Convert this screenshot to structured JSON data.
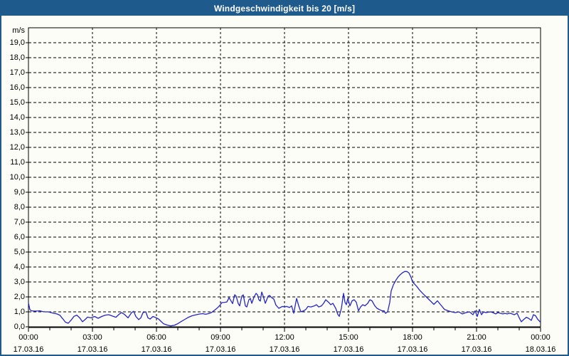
{
  "window": {
    "title": "Windgeschwindigkeit bis 20 [m/s]"
  },
  "colors": {
    "titlebar_bg": "#1e5a8c",
    "title_text": "#ffffff",
    "window_border": "#1e5a8c",
    "background": "#fcfdf6",
    "grid": "#000000",
    "line": "#2525c8"
  },
  "chart_data": {
    "type": "line",
    "title": "Windgeschwindigkeit bis 20 [m/s]",
    "ylabel": "m/s",
    "xlabel": "",
    "ylim": [
      0,
      20
    ],
    "grid": "dashed",
    "legend_position": "none",
    "ytick_values": [
      0,
      1,
      2,
      3,
      4,
      5,
      6,
      7,
      8,
      9,
      10,
      11,
      12,
      13,
      14,
      15,
      16,
      17,
      18,
      19
    ],
    "ytick_labels": [
      "0,0",
      "1,0",
      "2,0",
      "3,0",
      "4,0",
      "5,0",
      "6,0",
      "7,0",
      "8,0",
      "9,0",
      "10,0",
      "11,0",
      "12,0",
      "13,0",
      "14,0",
      "15,0",
      "16,0",
      "17,0",
      "18,0",
      "19,0"
    ],
    "xlim_minutes": [
      0,
      1440
    ],
    "x_minor_tick_minutes": 60,
    "xticks": [
      {
        "t": 0,
        "time": "00:00",
        "date": "17.03.16"
      },
      {
        "t": 180,
        "time": "03:00",
        "date": "17.03.16"
      },
      {
        "t": 360,
        "time": "06:00",
        "date": "17.03.16"
      },
      {
        "t": 540,
        "time": "09:00",
        "date": "17.03.16"
      },
      {
        "t": 720,
        "time": "12:00",
        "date": "17.03.16"
      },
      {
        "t": 900,
        "time": "15:00",
        "date": "17.03.16"
      },
      {
        "t": 1080,
        "time": "18:00",
        "date": "17.03.16"
      },
      {
        "t": 1260,
        "time": "21:00",
        "date": "17.03.16"
      },
      {
        "t": 1440,
        "time": "00:00",
        "date": "18.03.16"
      }
    ],
    "series": [
      {
        "name": "Windgeschwindigkeit",
        "points": [
          [
            0,
            1.6
          ],
          [
            4,
            1.15
          ],
          [
            8,
            1.07
          ],
          [
            16,
            1.05
          ],
          [
            24,
            1.05
          ],
          [
            32,
            1.07
          ],
          [
            40,
            1.02
          ],
          [
            48,
            1.0
          ],
          [
            56,
            1.0
          ],
          [
            64,
            0.95
          ],
          [
            72,
            0.9
          ],
          [
            80,
            0.86
          ],
          [
            88,
            0.78
          ],
          [
            96,
            0.55
          ],
          [
            104,
            0.31
          ],
          [
            112,
            0.24
          ],
          [
            120,
            0.45
          ],
          [
            128,
            0.7
          ],
          [
            136,
            0.78
          ],
          [
            144,
            0.6
          ],
          [
            152,
            0.34
          ],
          [
            160,
            0.5
          ],
          [
            166,
            0.65
          ],
          [
            176,
            0.6
          ],
          [
            186,
            0.69
          ],
          [
            196,
            0.57
          ],
          [
            206,
            0.69
          ],
          [
            216,
            0.78
          ],
          [
            226,
            0.81
          ],
          [
            236,
            0.72
          ],
          [
            246,
            0.64
          ],
          [
            256,
            0.86
          ],
          [
            262,
            0.95
          ],
          [
            270,
            0.83
          ],
          [
            280,
            0.6
          ],
          [
            290,
            0.95
          ],
          [
            296,
            1.04
          ],
          [
            302,
            0.69
          ],
          [
            310,
            0.48
          ],
          [
            316,
            0.6
          ],
          [
            322,
            0.95
          ],
          [
            330,
            1.0
          ],
          [
            336,
            0.6
          ],
          [
            342,
            0.52
          ],
          [
            350,
            0.69
          ],
          [
            356,
            0.64
          ],
          [
            366,
            0.52
          ],
          [
            372,
            0.38
          ],
          [
            380,
            0.2
          ],
          [
            390,
            0.12
          ],
          [
            400,
            0.06
          ],
          [
            410,
            0.1
          ],
          [
            420,
            0.21
          ],
          [
            430,
            0.36
          ],
          [
            440,
            0.5
          ],
          [
            450,
            0.64
          ],
          [
            460,
            0.74
          ],
          [
            470,
            0.8
          ],
          [
            480,
            0.85
          ],
          [
            490,
            0.88
          ],
          [
            498,
            0.84
          ],
          [
            506,
            0.88
          ],
          [
            514,
            0.95
          ],
          [
            520,
            1.05
          ],
          [
            526,
            1.16
          ],
          [
            532,
            1.28
          ],
          [
            538,
            1.43
          ],
          [
            544,
            1.62
          ],
          [
            552,
            1.64
          ],
          [
            558,
            1.66
          ],
          [
            564,
            1.95
          ],
          [
            570,
            1.72
          ],
          [
            574,
            1.55
          ],
          [
            580,
            2.15
          ],
          [
            584,
            2.05
          ],
          [
            590,
            1.55
          ],
          [
            594,
            1.4
          ],
          [
            600,
            2.05
          ],
          [
            604,
            2.14
          ],
          [
            610,
            1.4
          ],
          [
            614,
            1.33
          ],
          [
            620,
            1.81
          ],
          [
            624,
            1.9
          ],
          [
            628,
            1.57
          ],
          [
            634,
            1.97
          ],
          [
            640,
            2.24
          ],
          [
            644,
            2.14
          ],
          [
            648,
            1.81
          ],
          [
            652,
            1.72
          ],
          [
            656,
            2.33
          ],
          [
            660,
            2.05
          ],
          [
            666,
            1.57
          ],
          [
            670,
            1.81
          ],
          [
            674,
            2.05
          ],
          [
            678,
            2.1
          ],
          [
            684,
            1.95
          ],
          [
            690,
            1.85
          ],
          [
            696,
            1.45
          ],
          [
            704,
            1.24
          ],
          [
            714,
            1.36
          ],
          [
            720,
            1.33
          ],
          [
            726,
            1.36
          ],
          [
            734,
            1.29
          ],
          [
            740,
            1.4
          ],
          [
            746,
            0.91
          ],
          [
            754,
            1.9
          ],
          [
            760,
            1.4
          ],
          [
            766,
            1.0
          ],
          [
            774,
            1.07
          ],
          [
            780,
            1.16
          ],
          [
            786,
            1.36
          ],
          [
            794,
            1.33
          ],
          [
            804,
            1.4
          ],
          [
            810,
            1.48
          ],
          [
            816,
            1.33
          ],
          [
            824,
            1.4
          ],
          [
            830,
            1.57
          ],
          [
            836,
            1.81
          ],
          [
            844,
            1.64
          ],
          [
            850,
            1.48
          ],
          [
            856,
            1.57
          ],
          [
            864,
            1.24
          ],
          [
            870,
            0.83
          ],
          [
            874,
            0.7
          ],
          [
            880,
            1.24
          ],
          [
            886,
            2.24
          ],
          [
            890,
            1.64
          ],
          [
            894,
            1.48
          ],
          [
            898,
            1.9
          ],
          [
            904,
            1.4
          ],
          [
            910,
            1.74
          ],
          [
            916,
            1.81
          ],
          [
            922,
            1.64
          ],
          [
            928,
            1.07
          ],
          [
            934,
            1.33
          ],
          [
            940,
            1.48
          ],
          [
            946,
            1.4
          ],
          [
            954,
            1.57
          ],
          [
            960,
            1.81
          ],
          [
            966,
            1.74
          ],
          [
            974,
            1.4
          ],
          [
            980,
            1.24
          ],
          [
            986,
            1.16
          ],
          [
            994,
            1.07
          ],
          [
            1000,
            1.07
          ],
          [
            1004,
            0.9
          ],
          [
            1010,
            1.0
          ],
          [
            1016,
            1.64
          ],
          [
            1020,
            2.4
          ],
          [
            1026,
            2.8
          ],
          [
            1034,
            3.15
          ],
          [
            1040,
            3.35
          ],
          [
            1046,
            3.5
          ],
          [
            1052,
            3.62
          ],
          [
            1058,
            3.7
          ],
          [
            1064,
            3.7
          ],
          [
            1070,
            3.6
          ],
          [
            1076,
            3.3
          ],
          [
            1080,
            3.0
          ],
          [
            1086,
            2.85
          ],
          [
            1092,
            2.7
          ],
          [
            1100,
            2.45
          ],
          [
            1110,
            2.2
          ],
          [
            1120,
            1.97
          ],
          [
            1130,
            1.74
          ],
          [
            1140,
            1.5
          ],
          [
            1150,
            1.74
          ],
          [
            1160,
            1.45
          ],
          [
            1170,
            1.16
          ],
          [
            1180,
            1.07
          ],
          [
            1190,
            1.0
          ],
          [
            1200,
            0.95
          ],
          [
            1210,
            1.0
          ],
          [
            1220,
            0.86
          ],
          [
            1230,
            0.95
          ],
          [
            1240,
            1.0
          ],
          [
            1250,
            0.81
          ],
          [
            1256,
            1.07
          ],
          [
            1262,
            0.69
          ],
          [
            1268,
            1.16
          ],
          [
            1274,
            0.81
          ],
          [
            1280,
            1.0
          ],
          [
            1286,
            0.95
          ],
          [
            1294,
            0.98
          ],
          [
            1300,
            1.0
          ],
          [
            1306,
            0.95
          ],
          [
            1314,
            0.86
          ],
          [
            1320,
            0.95
          ],
          [
            1326,
            0.91
          ],
          [
            1334,
            0.86
          ],
          [
            1340,
            0.9
          ],
          [
            1346,
            0.86
          ],
          [
            1354,
            0.91
          ],
          [
            1360,
            0.86
          ],
          [
            1366,
            0.81
          ],
          [
            1374,
            0.91
          ],
          [
            1380,
            0.6
          ],
          [
            1386,
            0.34
          ],
          [
            1394,
            0.52
          ],
          [
            1400,
            0.64
          ],
          [
            1406,
            0.57
          ],
          [
            1414,
            0.43
          ],
          [
            1420,
            0.81
          ],
          [
            1426,
            0.74
          ],
          [
            1432,
            0.5
          ],
          [
            1440,
            0.3
          ]
        ]
      }
    ]
  }
}
